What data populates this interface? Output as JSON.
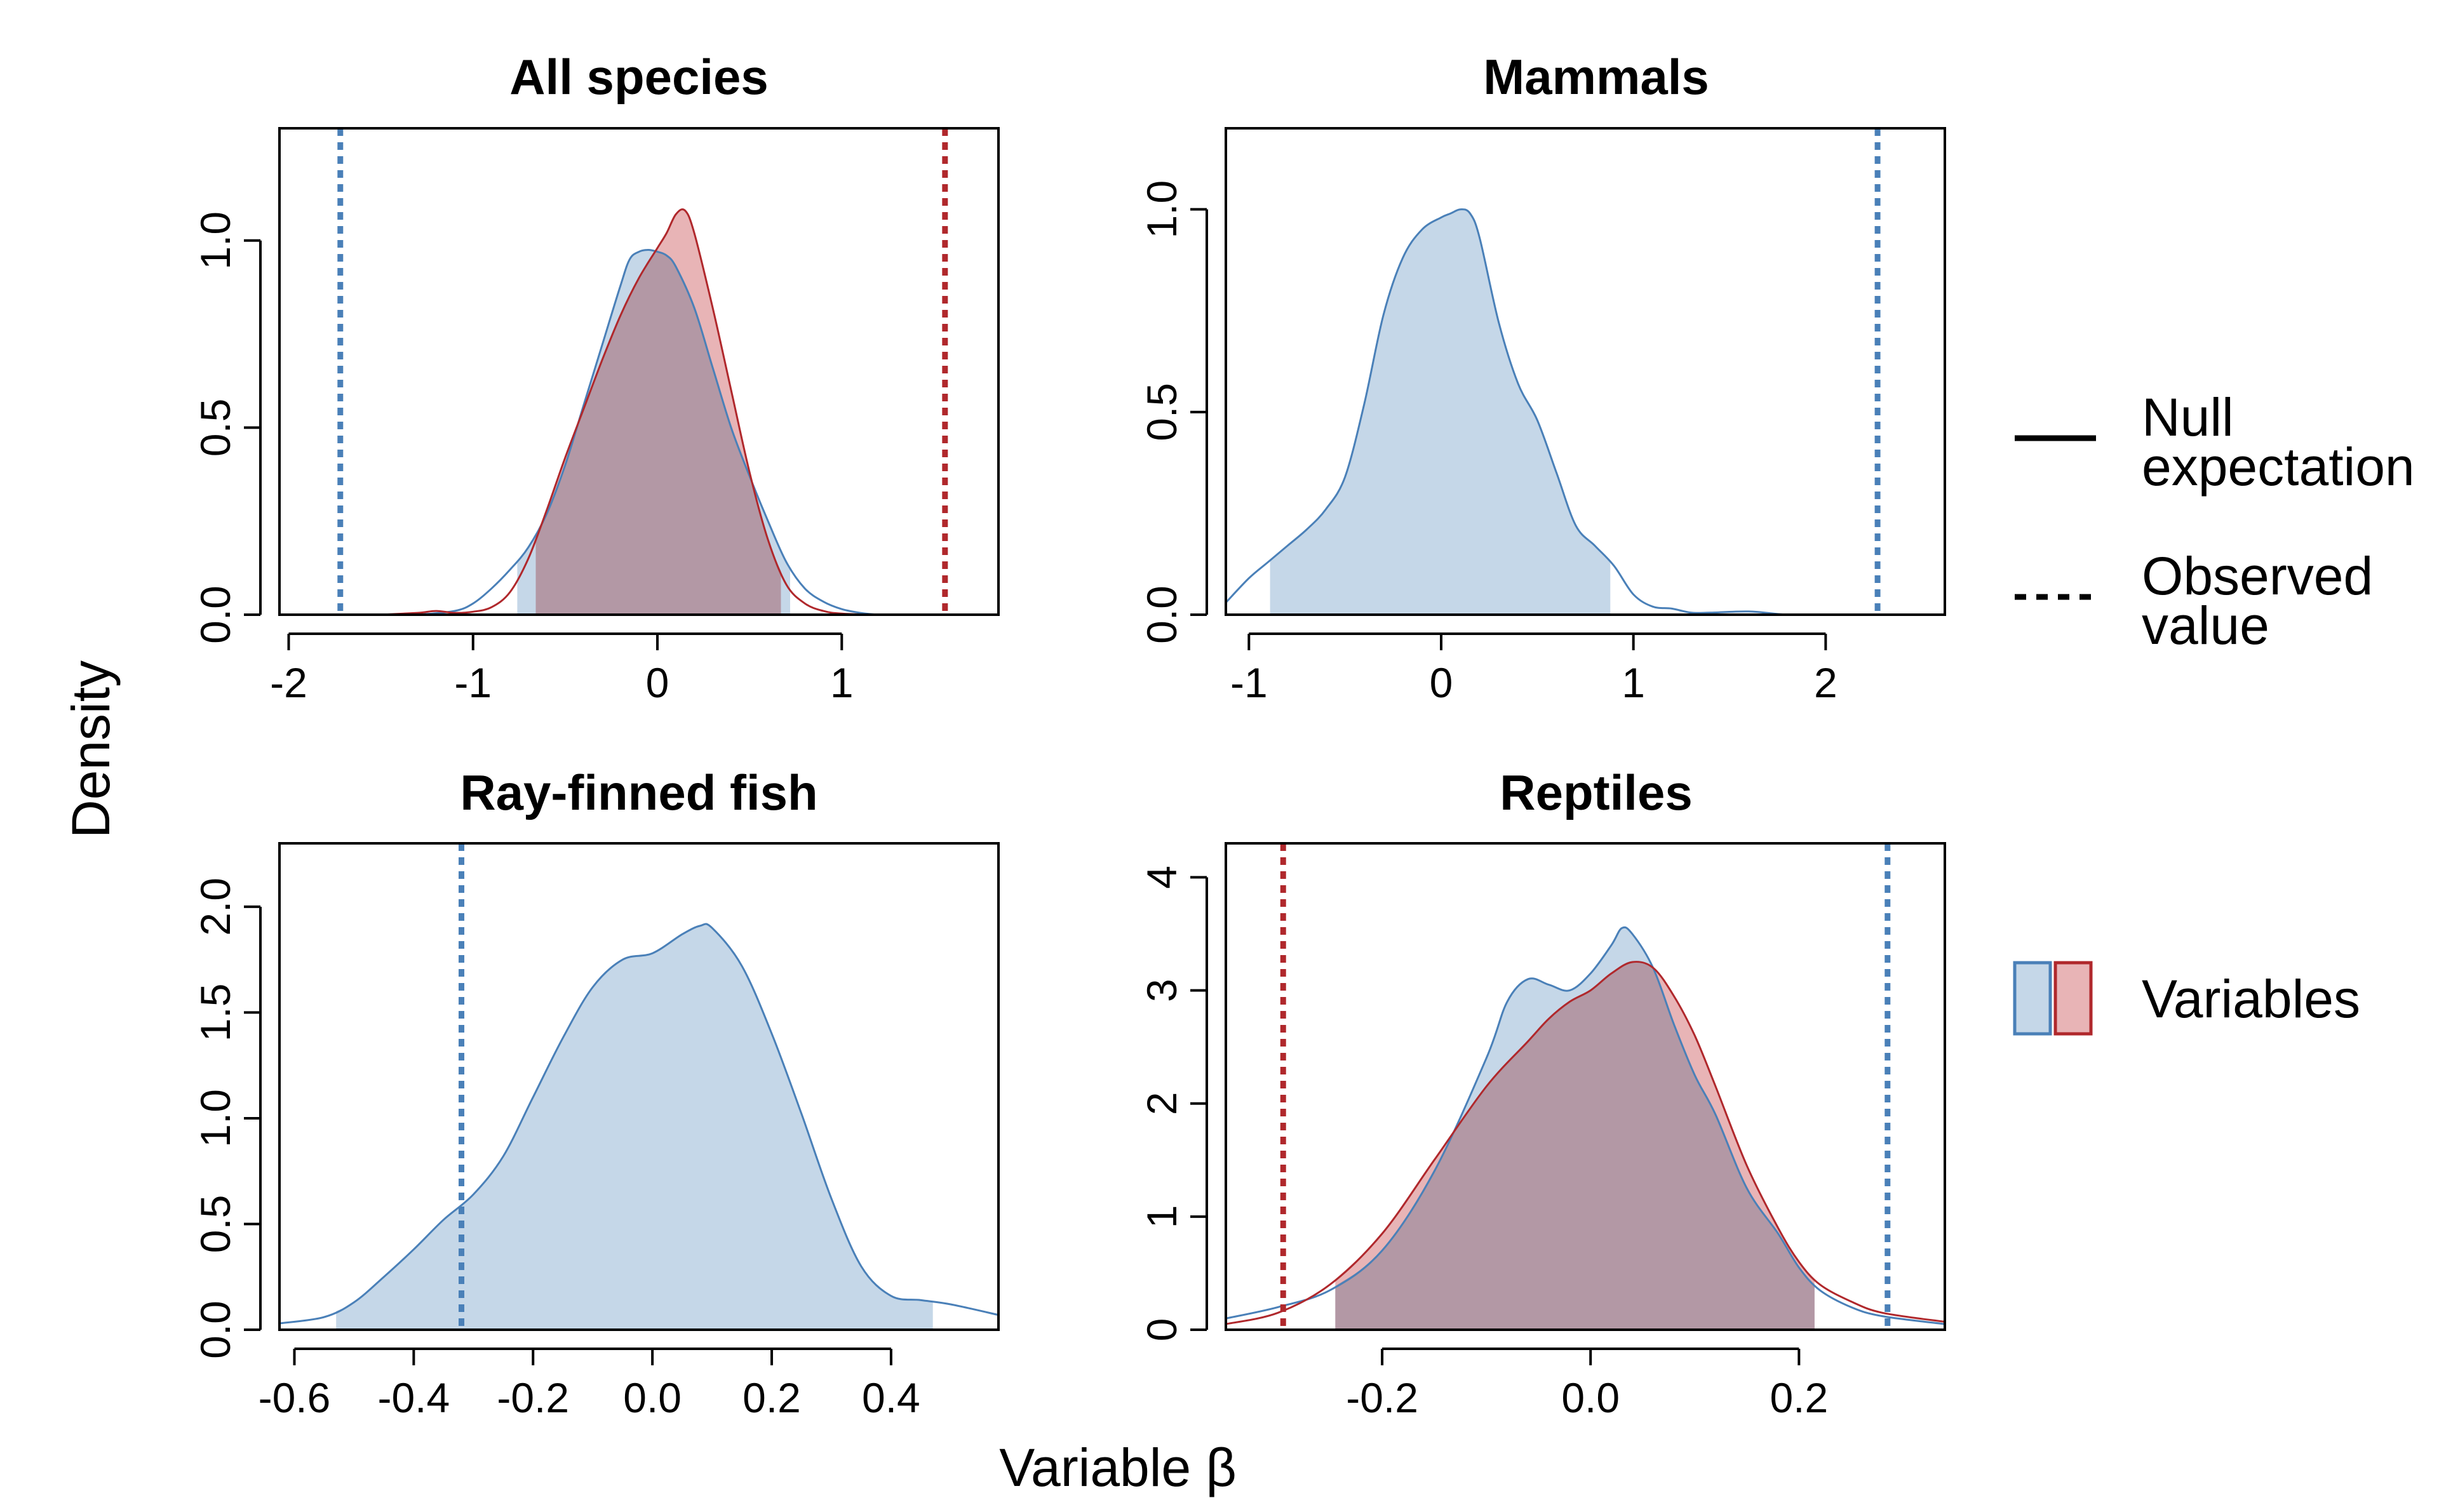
{
  "figure": {
    "ylabel": "Density",
    "xlabel": "Variable β"
  },
  "colors": {
    "blue_fill": "#c5d7e8",
    "blue_line": "#4a80b8",
    "red_fill": "#e8b4b6",
    "red_line": "#b0282c",
    "overlap_fill": "#c0a4ad"
  },
  "legend": {
    "null_label": [
      "Null",
      "expectation"
    ],
    "observed_label": [
      "Observed",
      "value"
    ],
    "variables_label": "Variables"
  },
  "chart_data": [
    {
      "type": "area",
      "title": "All species",
      "xlim": [
        -2.05,
        1.85
      ],
      "ylim": [
        0,
        1.3
      ],
      "xticks": [
        -2,
        -1,
        0,
        1
      ],
      "xtick_labels": [
        "-2",
        "-1",
        "0",
        "1"
      ],
      "yticks": [
        0,
        0.5,
        1
      ],
      "ytick_labels": [
        "0.0",
        "0.5",
        "1.0"
      ],
      "series": [
        {
          "color": "blue",
          "x": [
            -1.3,
            -1.1,
            -1.0,
            -0.9,
            -0.8,
            -0.7,
            -0.6,
            -0.5,
            -0.4,
            -0.3,
            -0.2,
            -0.15,
            -0.1,
            -0.05,
            0.0,
            0.05,
            0.1,
            0.2,
            0.3,
            0.4,
            0.5,
            0.6,
            0.7,
            0.8,
            0.9,
            1.0,
            1.1,
            1.2,
            1.3,
            1.5,
            1.7,
            1.85
          ],
          "y": [
            0.0,
            0.01,
            0.03,
            0.07,
            0.12,
            0.18,
            0.27,
            0.4,
            0.56,
            0.72,
            0.88,
            0.95,
            0.97,
            0.975,
            0.97,
            0.96,
            0.93,
            0.82,
            0.66,
            0.5,
            0.37,
            0.25,
            0.14,
            0.07,
            0.035,
            0.015,
            0.005,
            0.0,
            0.0,
            0.0,
            0.0,
            0.0
          ],
          "shade_range": [
            -0.76,
            0.72
          ],
          "observed": -1.72
        },
        {
          "color": "red",
          "x": [
            -1.5,
            -1.3,
            -1.2,
            -1.1,
            -1.0,
            -0.9,
            -0.8,
            -0.7,
            -0.6,
            -0.5,
            -0.4,
            -0.3,
            -0.2,
            -0.1,
            0.0,
            0.05,
            0.1,
            0.15,
            0.2,
            0.3,
            0.4,
            0.5,
            0.6,
            0.7,
            0.8,
            0.9,
            1.0,
            1.2,
            1.5,
            1.85
          ],
          "y": [
            0.0,
            0.005,
            0.01,
            0.005,
            0.008,
            0.02,
            0.06,
            0.15,
            0.28,
            0.42,
            0.55,
            0.68,
            0.8,
            0.9,
            0.98,
            1.02,
            1.07,
            1.08,
            1.02,
            0.82,
            0.6,
            0.38,
            0.2,
            0.08,
            0.03,
            0.01,
            0.003,
            0.0,
            0.0,
            0.0
          ],
          "shade_range": [
            -0.66,
            0.67
          ],
          "observed": 1.56
        }
      ]
    },
    {
      "type": "area",
      "title": "Mammals",
      "xlim": [
        -1.12,
        2.62
      ],
      "ylim": [
        0,
        1.2
      ],
      "xticks": [
        -1,
        0,
        1,
        2
      ],
      "xtick_labels": [
        "-1",
        "0",
        "1",
        "2"
      ],
      "yticks": [
        0,
        0.5,
        1
      ],
      "ytick_labels": [
        "0.0",
        "0.5",
        "1.0"
      ],
      "series": [
        {
          "color": "blue",
          "x": [
            -1.12,
            -1.0,
            -0.9,
            -0.8,
            -0.7,
            -0.6,
            -0.5,
            -0.4,
            -0.3,
            -0.2,
            -0.1,
            0.0,
            0.05,
            0.1,
            0.15,
            0.2,
            0.3,
            0.4,
            0.5,
            0.6,
            0.7,
            0.8,
            0.9,
            1.0,
            1.1,
            1.2,
            1.3,
            1.4,
            1.6,
            1.8,
            2.0,
            2.62
          ],
          "y": [
            0.03,
            0.09,
            0.13,
            0.17,
            0.21,
            0.26,
            0.34,
            0.52,
            0.74,
            0.88,
            0.95,
            0.98,
            0.99,
            1.0,
            0.99,
            0.93,
            0.72,
            0.57,
            0.48,
            0.35,
            0.22,
            0.17,
            0.12,
            0.05,
            0.02,
            0.015,
            0.005,
            0.005,
            0.008,
            0.0,
            0.0,
            0.0
          ],
          "shade_range": [
            -0.89,
            0.88
          ],
          "observed": 2.27
        }
      ]
    },
    {
      "type": "area",
      "title": "Ray-finned fish",
      "xlim": [
        -0.625,
        0.58
      ],
      "ylim": [
        0,
        2.3
      ],
      "xticks": [
        -0.6,
        -0.4,
        -0.2,
        0.0,
        0.2,
        0.4
      ],
      "xtick_labels": [
        "-0.6",
        "-0.4",
        "-0.2",
        "0.0",
        "0.2",
        "0.4"
      ],
      "yticks": [
        0,
        0.5,
        1,
        1.5,
        2
      ],
      "ytick_labels": [
        "0.0",
        "0.5",
        "1.0",
        "1.5",
        "2.0"
      ],
      "series": [
        {
          "color": "blue",
          "x": [
            -0.625,
            -0.55,
            -0.5,
            -0.45,
            -0.4,
            -0.35,
            -0.3,
            -0.25,
            -0.2,
            -0.15,
            -0.1,
            -0.05,
            0.0,
            0.05,
            0.08,
            0.1,
            0.15,
            0.2,
            0.25,
            0.3,
            0.35,
            0.4,
            0.45,
            0.5,
            0.58
          ],
          "y": [
            0.03,
            0.06,
            0.13,
            0.25,
            0.38,
            0.52,
            0.64,
            0.82,
            1.1,
            1.38,
            1.62,
            1.75,
            1.78,
            1.87,
            1.91,
            1.9,
            1.72,
            1.4,
            1.02,
            0.62,
            0.3,
            0.16,
            0.14,
            0.12,
            0.07
          ],
          "shade_range": [
            -0.53,
            0.47
          ],
          "observed": -0.32
        }
      ]
    },
    {
      "type": "area",
      "title": "Reptiles",
      "xlim": [
        -0.35,
        0.34
      ],
      "ylim": [
        0,
        4.3
      ],
      "xticks": [
        -0.2,
        0.0,
        0.2
      ],
      "xtick_labels": [
        "-0.2",
        "0.0",
        "0.2"
      ],
      "yticks": [
        0,
        1,
        2,
        3,
        4
      ],
      "ytick_labels": [
        "0",
        "1",
        "2",
        "3",
        "4"
      ],
      "series": [
        {
          "color": "blue",
          "x": [
            -0.35,
            -0.3,
            -0.25,
            -0.2,
            -0.15,
            -0.1,
            -0.08,
            -0.06,
            -0.04,
            -0.02,
            0.0,
            0.02,
            0.03,
            0.04,
            0.06,
            0.08,
            0.1,
            0.12,
            0.15,
            0.18,
            0.2,
            0.22,
            0.25,
            0.28,
            0.34
          ],
          "y": [
            0.1,
            0.2,
            0.35,
            0.7,
            1.4,
            2.4,
            2.9,
            3.1,
            3.05,
            3.0,
            3.15,
            3.4,
            3.55,
            3.5,
            3.2,
            2.7,
            2.25,
            1.9,
            1.25,
            0.85,
            0.55,
            0.35,
            0.2,
            0.12,
            0.05
          ],
          "shade_range": [
            -0.245,
            0.215
          ],
          "observed": 0.285
        },
        {
          "color": "red",
          "x": [
            -0.35,
            -0.3,
            -0.25,
            -0.2,
            -0.15,
            -0.1,
            -0.06,
            -0.04,
            -0.02,
            0.0,
            0.02,
            0.04,
            0.06,
            0.08,
            0.1,
            0.12,
            0.15,
            0.18,
            0.2,
            0.22,
            0.25,
            0.28,
            0.34
          ],
          "y": [
            0.05,
            0.15,
            0.4,
            0.85,
            1.5,
            2.15,
            2.55,
            2.75,
            2.9,
            3.0,
            3.15,
            3.25,
            3.2,
            2.95,
            2.6,
            2.15,
            1.45,
            0.9,
            0.6,
            0.4,
            0.25,
            0.15,
            0.07
          ],
          "shade_range": [
            -0.245,
            0.215
          ],
          "observed": -0.295
        }
      ]
    }
  ]
}
